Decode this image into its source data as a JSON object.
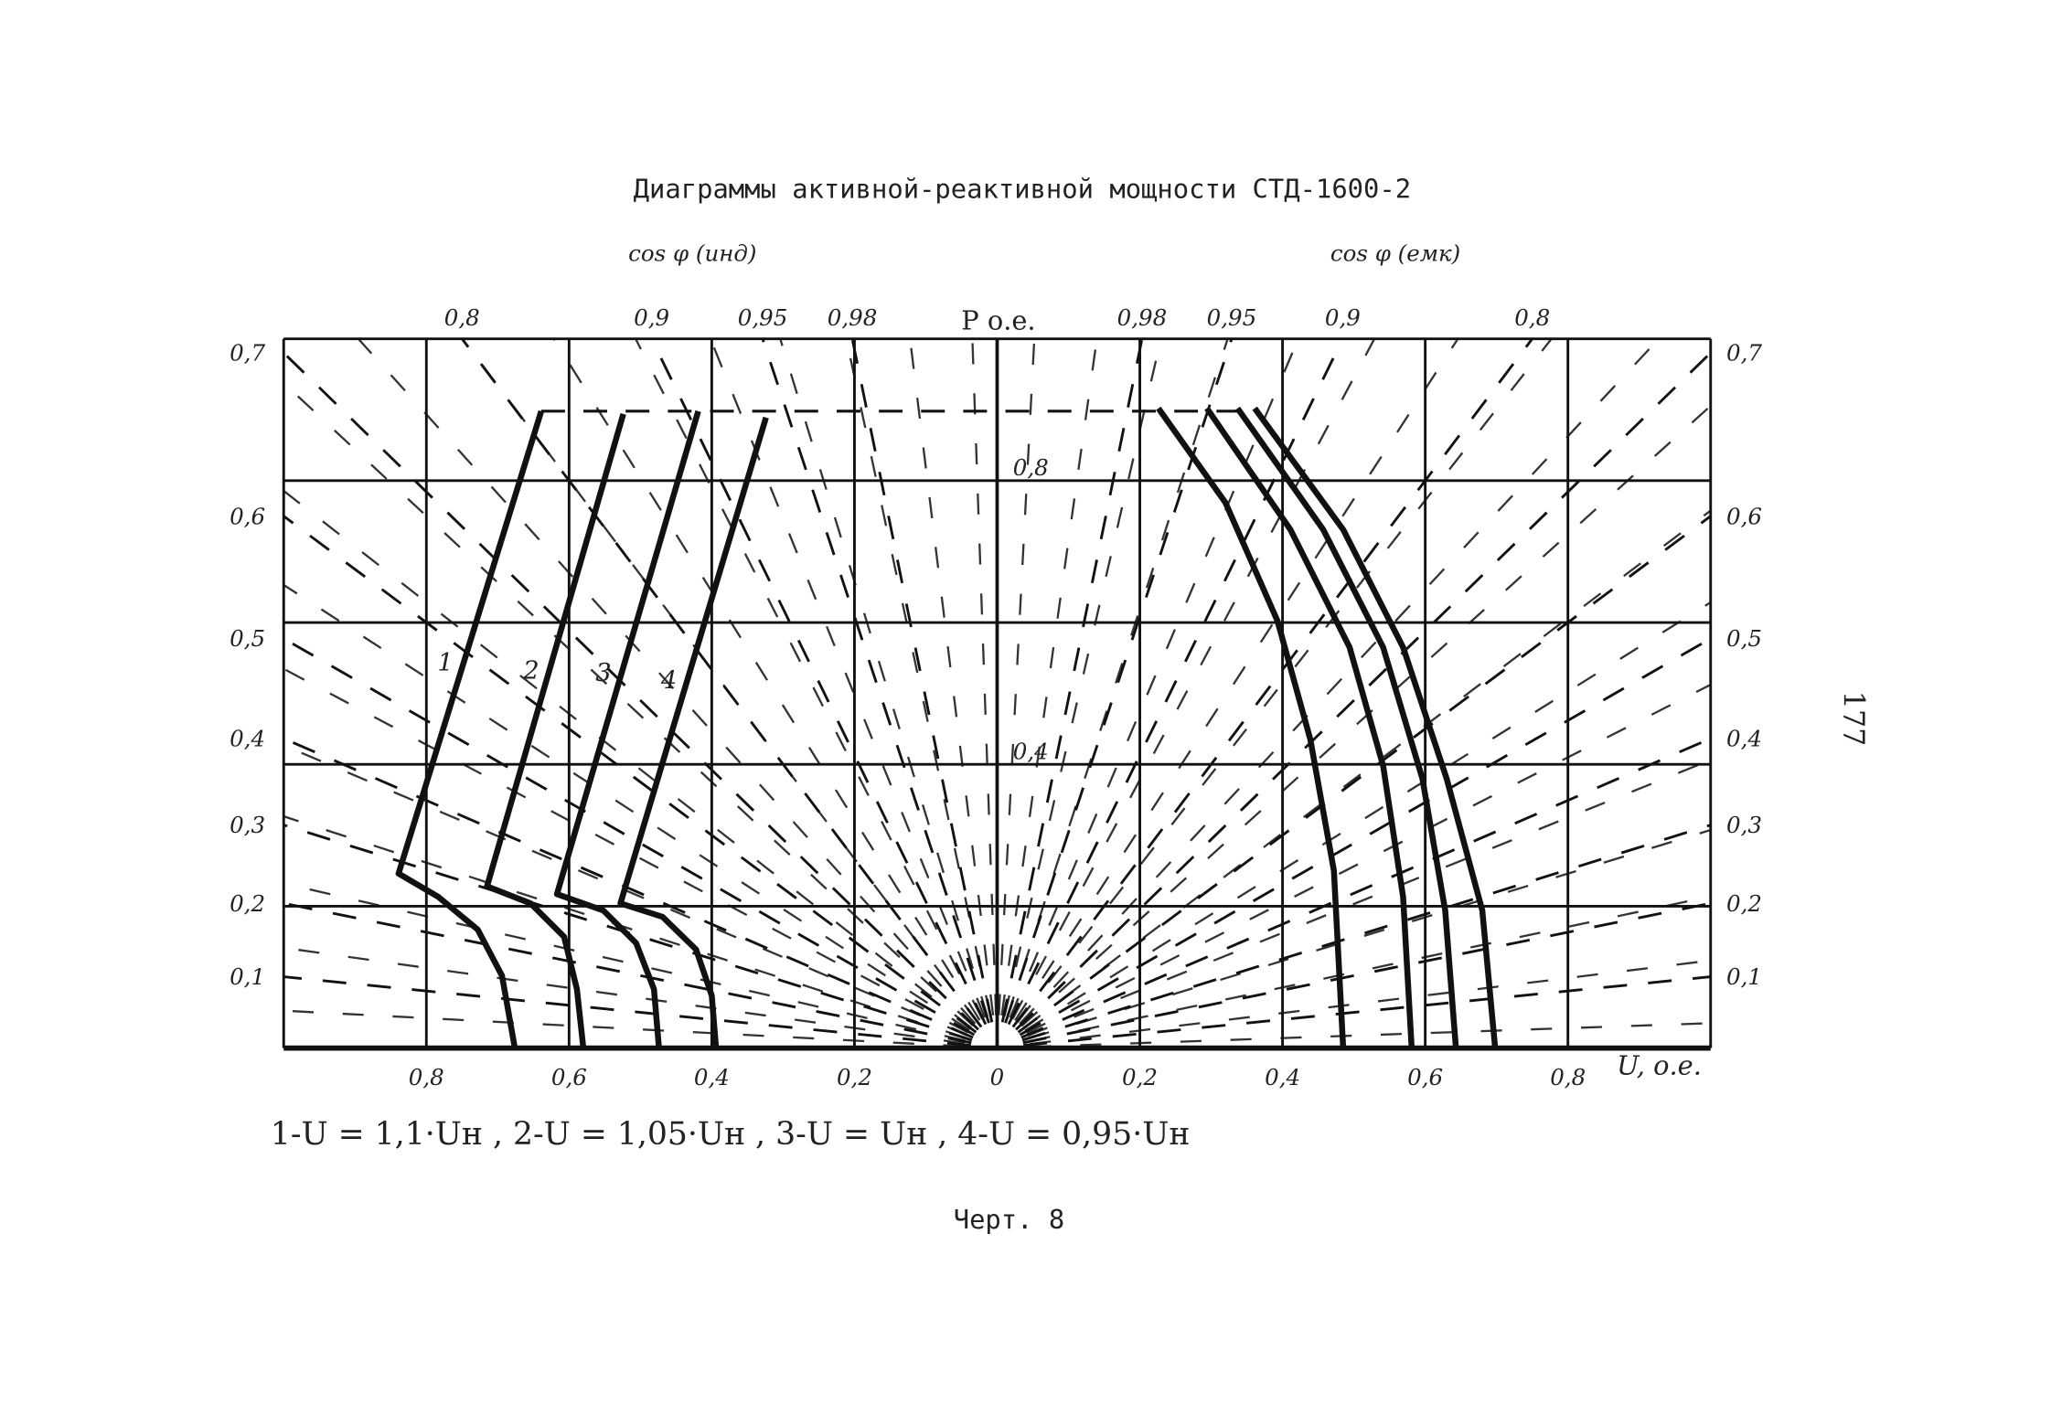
{
  "title": "Диаграммы активной-реактивной мощности СТД-1600-2",
  "page_number": "177",
  "legend_text": "1-U = 1,1·Uн , 2-U = 1,05·Uн , 3-U = Uн , 4-U = 0,95·Uн",
  "caption": "Черт. 8",
  "chart_data": {
    "type": "line",
    "left_label": "cos φ (инд)",
    "right_label": "cos φ (емк)",
    "y_label": "Р о.е.",
    "x_label": "U, о.е.",
    "xlim": [
      -1,
      1
    ],
    "ylim": [
      0,
      1
    ],
    "grid_x": [
      -1,
      -0.8,
      -0.6,
      -0.4,
      -0.2,
      0,
      0.2,
      0.4,
      0.6,
      0.8,
      1
    ],
    "grid_y": [
      0,
      0.2,
      0.4,
      0.6,
      0.8,
      1
    ],
    "xticks": [
      {
        "value": -0.8,
        "label": "0,8"
      },
      {
        "value": -0.6,
        "label": "0,6"
      },
      {
        "value": -0.4,
        "label": "0,4"
      },
      {
        "value": -0.2,
        "label": "0,2"
      },
      0,
      {
        "value": 0.2,
        "label": "0,2"
      },
      {
        "value": 0.4,
        "label": "0,4"
      },
      {
        "value": 0.6,
        "label": "0,6"
      },
      {
        "value": 0.8,
        "label": "0,8"
      }
    ],
    "yticks": [
      {
        "value": 0.4,
        "label": "0,4"
      },
      {
        "value": 0.8,
        "label": "0,8"
      }
    ],
    "cos_ticks": [
      {
        "value": 0.98,
        "label": "0,98"
      },
      {
        "value": 0.95,
        "label": "0,95"
      },
      {
        "value": 0.9,
        "label": "0,9"
      },
      {
        "value": 0.8,
        "label": "0,8"
      },
      {
        "value": 0.7,
        "label": "0,7"
      },
      {
        "value": 0.6,
        "label": "0,6"
      },
      {
        "value": 0.5,
        "label": "0,5"
      },
      {
        "value": 0.4,
        "label": "0,4"
      },
      {
        "value": 0.3,
        "label": "0,3"
      },
      {
        "value": 0.2,
        "label": "0,2"
      },
      {
        "value": 0.1,
        "label": "0,1"
      }
    ],
    "series": [
      {
        "name": "1",
        "color": "#111111",
        "x": [
          -0.639,
          -0.839,
          -0.783,
          -0.728,
          -0.694,
          -0.676
        ],
        "values": [
          0.898,
          0.246,
          0.213,
          0.167,
          0.102,
          0
        ]
      },
      {
        "name": "2",
        "color": "#111111",
        "x": [
          -0.524,
          -0.715,
          -0.654,
          -0.607,
          -0.589,
          -0.58
        ],
        "values": [
          0.894,
          0.228,
          0.204,
          0.157,
          0.083,
          0
        ]
      },
      {
        "name": "3",
        "color": "#111111",
        "x": [
          -0.419,
          -0.617,
          -0.552,
          -0.506,
          -0.481,
          -0.474
        ],
        "values": [
          0.898,
          0.217,
          0.194,
          0.148,
          0.083,
          0
        ]
      },
      {
        "name": "4",
        "color": "#111111",
        "x": [
          -0.324,
          -0.528,
          -0.469,
          -0.422,
          -0.4,
          -0.394
        ],
        "values": [
          0.889,
          0.204,
          0.185,
          0.139,
          0.074,
          0
        ]
      },
      {
        "color": "#111111",
        "x": [
          0.226,
          0.32,
          0.393,
          0.439,
          0.472,
          0.485
        ],
        "values": [
          0.902,
          0.769,
          0.602,
          0.435,
          0.25,
          0
        ]
      },
      {
        "color": "#111111",
        "x": [
          0.294,
          0.411,
          0.494,
          0.541,
          0.569,
          0.581
        ],
        "values": [
          0.902,
          0.731,
          0.565,
          0.398,
          0.213,
          0
        ]
      },
      {
        "color": "#111111",
        "x": [
          0.337,
          0.457,
          0.541,
          0.596,
          0.628,
          0.643
        ],
        "values": [
          0.902,
          0.731,
          0.565,
          0.38,
          0.194,
          0
        ]
      },
      {
        "color": "#111111",
        "x": [
          0.361,
          0.485,
          0.569,
          0.63,
          0.68,
          0.698
        ],
        "values": [
          0.902,
          0.731,
          0.565,
          0.38,
          0.194,
          0
        ]
      }
    ]
  }
}
